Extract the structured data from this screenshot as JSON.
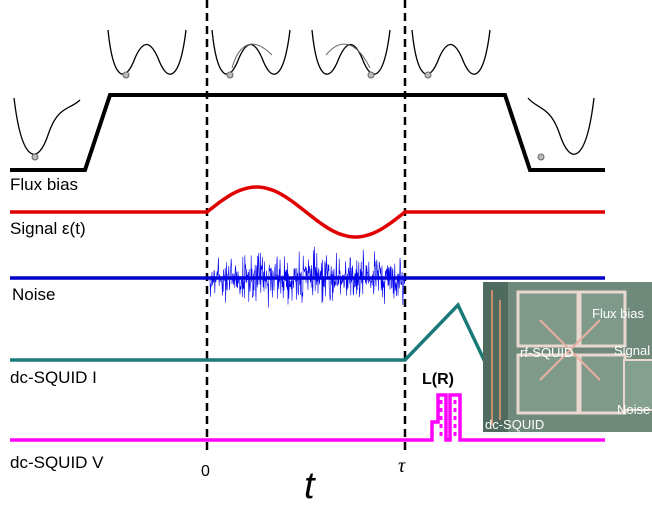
{
  "traces": {
    "flux_bias": "Flux bias",
    "signal": "Signal ε(t)",
    "noise": "Noise",
    "squid_current": "dc-SQUID I",
    "squid_voltage": "dc-SQUID V"
  },
  "time_axis": {
    "start": "0",
    "end": "τ",
    "label": "t"
  },
  "pulse_label": "L(R)",
  "inset": {
    "flux_bias": "Flux bias",
    "rf_squid": "rf-SQUID",
    "signal": "Signal",
    "noise": "Noise",
    "dc_squid": "dc-SQUID"
  }
}
